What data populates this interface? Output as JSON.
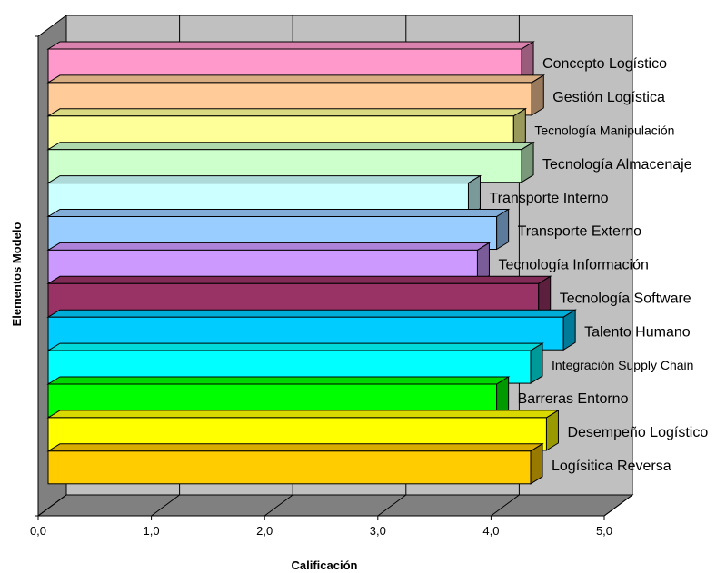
{
  "chart_data": {
    "type": "bar",
    "orientation": "horizontal",
    "style": "3d",
    "title": "",
    "xlabel": "Calificación",
    "ylabel": "Elementos Modelo",
    "xlim": [
      0,
      5
    ],
    "x_ticks": [
      "0,0",
      "1,0",
      "2,0",
      "3,0",
      "4,0",
      "5,0"
    ],
    "grid": true,
    "legend": "none",
    "categories": [
      "Concepto Logístico",
      "Gestión Logística",
      "Tecnología Manipulación",
      "Tecnología Almacenaje",
      "Transporte Interno",
      "Transporte Externo",
      "Tecnología Información",
      "Tecnología Software",
      "Talento Humano",
      "Integración Supply Chain",
      "Barreras Entorno",
      "Desempeño Logístico",
      "Logísitica Reversa"
    ],
    "values": [
      4.27,
      4.36,
      4.2,
      4.27,
      3.8,
      4.05,
      3.88,
      4.42,
      4.64,
      4.35,
      4.05,
      4.49,
      4.35
    ],
    "colors": [
      "#ff99cc",
      "#ffcc99",
      "#ffff99",
      "#ccffcc",
      "#ccffff",
      "#99ccff",
      "#cc99ff",
      "#993366",
      "#00ccff",
      "#00ffff",
      "#00ff00",
      "#ffff00",
      "#ffcc00"
    ],
    "wall_color": "#c0c0c0",
    "floor_color": "#808080"
  }
}
